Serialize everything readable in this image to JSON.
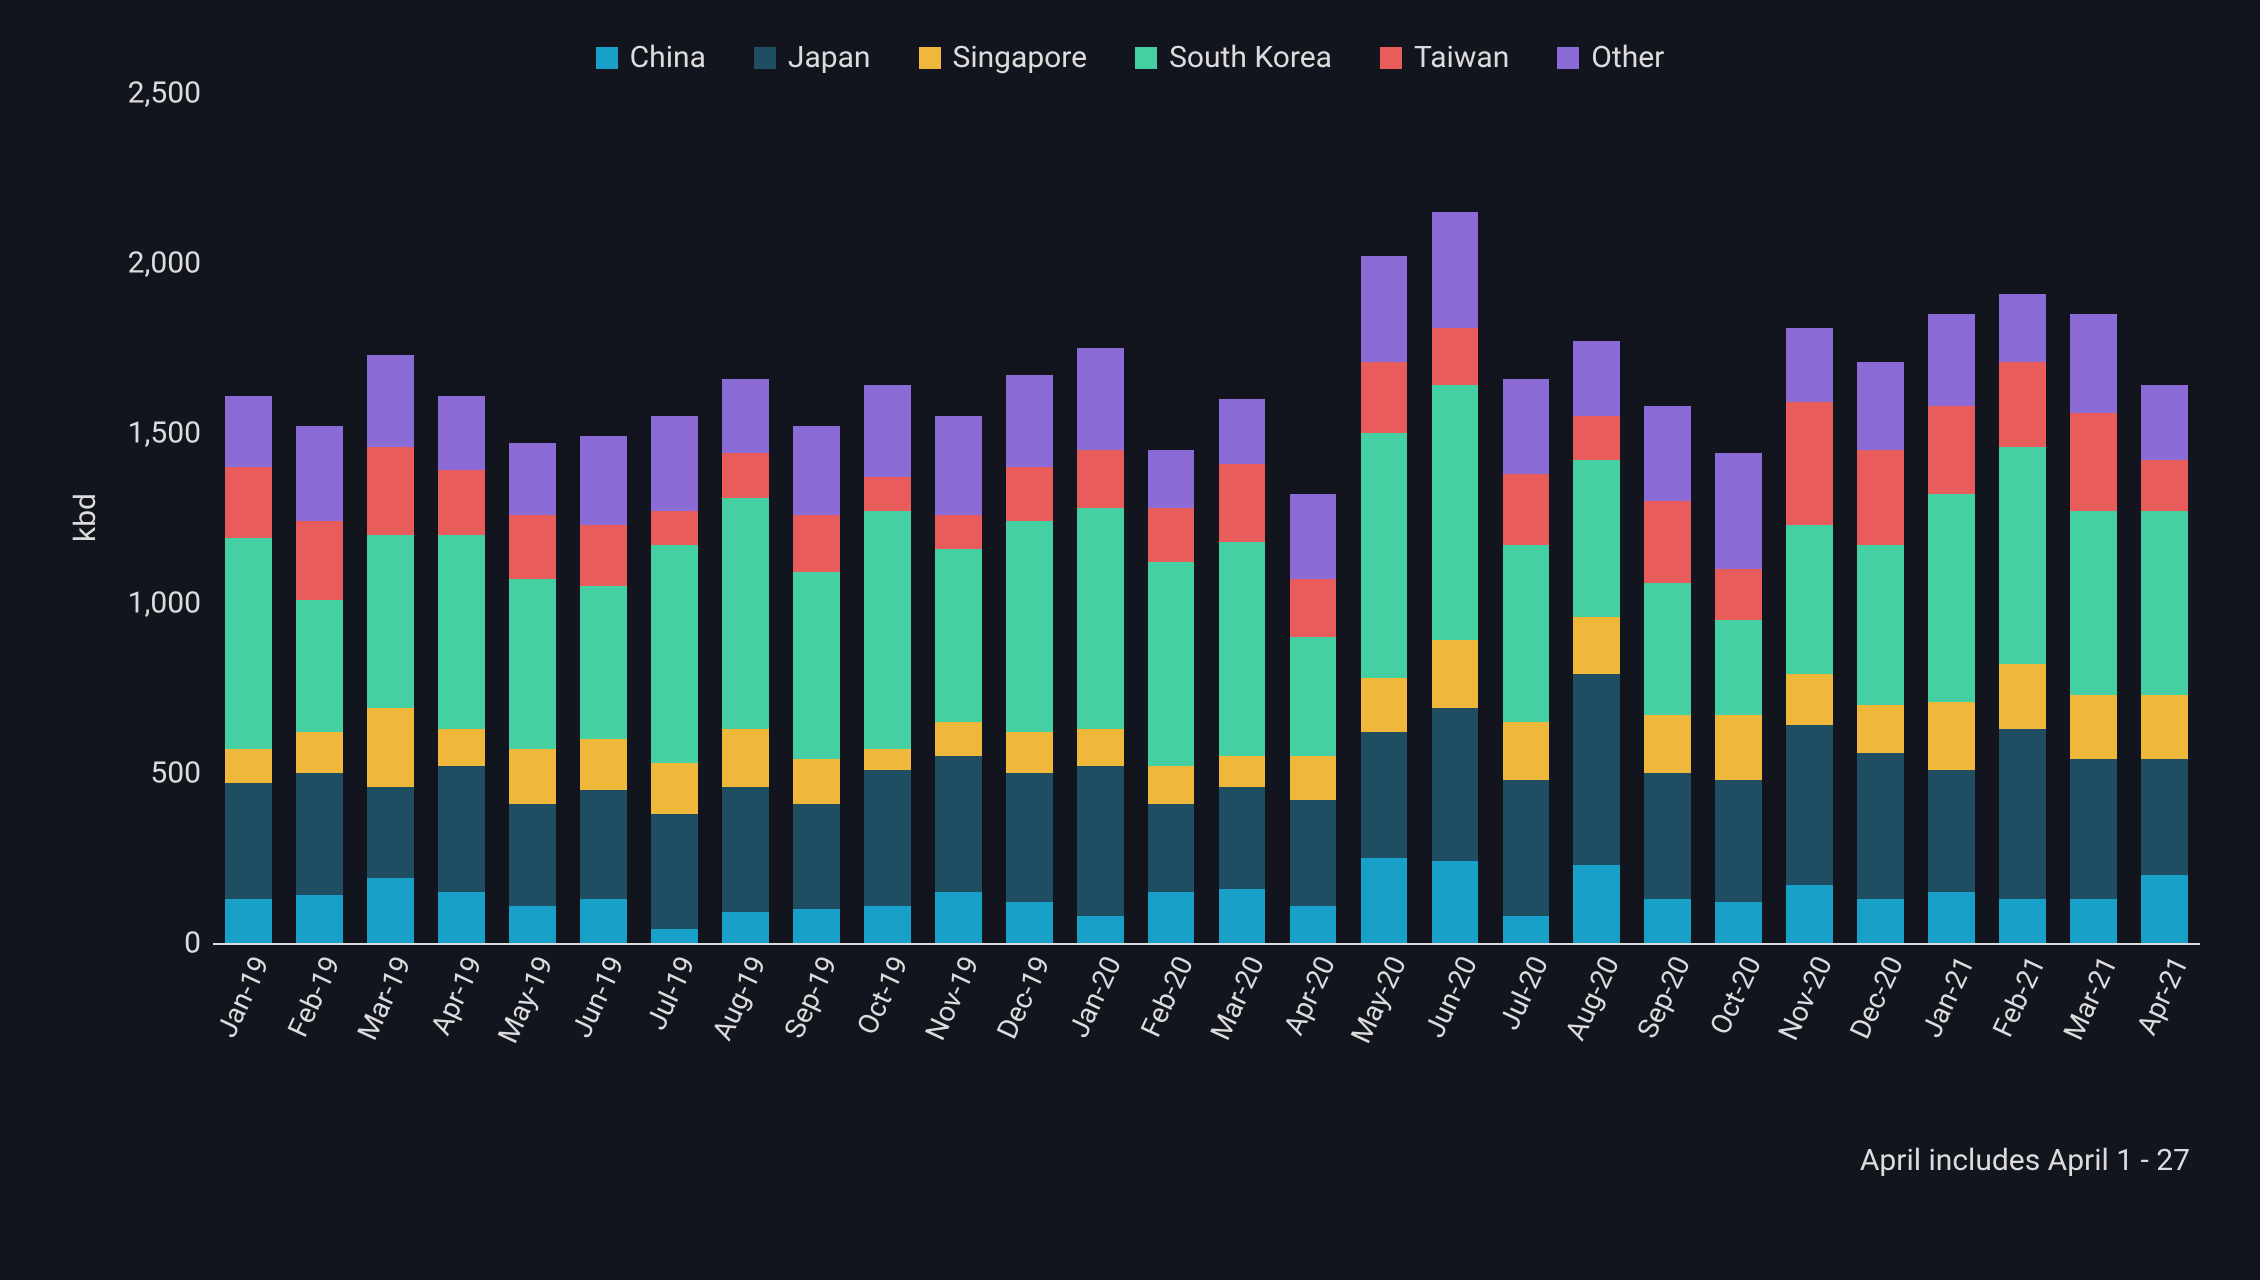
{
  "chart": {
    "type": "stacked-bar",
    "background_color": "#13151e",
    "text_color": "#dcdcdc",
    "axis_line_color": "#dcdcdc",
    "font_family": "Segoe UI, Roboto, Helvetica Neue, Arial, sans-serif",
    "legend_fontsize": 30,
    "tick_fontsize": 30,
    "xlabel_fontsize": 28,
    "ylabel": "kbd",
    "ylabel_fontsize": 30,
    "ylim": [
      0,
      2500
    ],
    "ytick_step": 500,
    "yticks": [
      "0",
      "500",
      "1,000",
      "1,500",
      "2,000",
      "2,500"
    ],
    "xtick_rotation_deg": -65,
    "bar_width_ratio": 0.66,
    "footnote": "April includes April 1 - 27",
    "footnote_fontsize": 30,
    "series": [
      {
        "key": "china",
        "label": "China",
        "color": "#18a0c8"
      },
      {
        "key": "japan",
        "label": "Japan",
        "color": "#1f4e63"
      },
      {
        "key": "singapore",
        "label": "Singapore",
        "color": "#f0b83a"
      },
      {
        "key": "south_korea",
        "label": "South Korea",
        "color": "#45d0a4"
      },
      {
        "key": "taiwan",
        "label": "Taiwan",
        "color": "#e95c5c"
      },
      {
        "key": "other",
        "label": "Other",
        "color": "#8b6cd6"
      }
    ],
    "categories": [
      "Jan-19",
      "Feb-19",
      "Mar-19",
      "Apr-19",
      "May-19",
      "Jun-19",
      "Jul-19",
      "Aug-19",
      "Sep-19",
      "Oct-19",
      "Nov-19",
      "Dec-19",
      "Jan-20",
      "Feb-20",
      "Mar-20",
      "Apr-20",
      "May-20",
      "Jun-20",
      "Jul-20",
      "Aug-20",
      "Sep-20",
      "Oct-20",
      "Nov-20",
      "Dec-20",
      "Jan-21",
      "Feb-21",
      "Mar-21",
      "Apr-21"
    ],
    "values": {
      "china": [
        130,
        140,
        190,
        150,
        110,
        130,
        40,
        90,
        100,
        110,
        150,
        120,
        80,
        150,
        160,
        110,
        250,
        240,
        80,
        230,
        130,
        120,
        170,
        130,
        150,
        130,
        130,
        200
      ],
      "japan": [
        340,
        360,
        270,
        370,
        300,
        320,
        340,
        370,
        310,
        400,
        400,
        380,
        440,
        260,
        300,
        310,
        370,
        450,
        400,
        560,
        370,
        360,
        470,
        430,
        360,
        500,
        410,
        340
      ],
      "singapore": [
        100,
        120,
        230,
        110,
        160,
        150,
        150,
        170,
        130,
        60,
        100,
        120,
        110,
        110,
        90,
        130,
        160,
        200,
        170,
        170,
        170,
        190,
        150,
        140,
        200,
        190,
        190,
        190
      ],
      "south_korea": [
        620,
        390,
        510,
        570,
        500,
        450,
        640,
        680,
        550,
        700,
        510,
        620,
        650,
        600,
        630,
        350,
        720,
        750,
        520,
        460,
        390,
        280,
        440,
        470,
        610,
        640,
        540,
        540
      ],
      "taiwan": [
        210,
        230,
        260,
        190,
        190,
        180,
        100,
        130,
        170,
        100,
        100,
        160,
        170,
        160,
        230,
        170,
        210,
        170,
        210,
        130,
        240,
        150,
        360,
        280,
        260,
        250,
        290,
        150
      ],
      "other": [
        210,
        280,
        270,
        220,
        210,
        260,
        280,
        220,
        260,
        270,
        290,
        270,
        300,
        170,
        190,
        250,
        310,
        340,
        280,
        220,
        280,
        340,
        220,
        260,
        270,
        200,
        290,
        220
      ]
    }
  }
}
